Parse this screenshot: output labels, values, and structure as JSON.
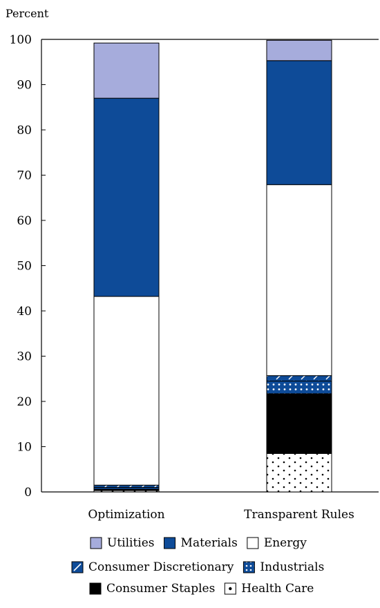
{
  "chart_data": {
    "type": "bar",
    "stacked": true,
    "ylabel": "Percent",
    "ylim": [
      0,
      100
    ],
    "yticks": [
      0,
      10,
      20,
      30,
      40,
      50,
      60,
      70,
      80,
      90,
      100
    ],
    "categories": [
      "Optimization",
      "Transparent Rules"
    ],
    "series": [
      {
        "name": "Health Care",
        "values": [
          0.3,
          8.5
        ],
        "color": "#ffffff",
        "pattern": "dots-black"
      },
      {
        "name": "Consumer Staples",
        "values": [
          0.3,
          13.2
        ],
        "color": "#000000",
        "pattern": "solid"
      },
      {
        "name": "Industrials",
        "values": [
          0.4,
          2.8
        ],
        "color": "#0e4b98",
        "pattern": "dots-white"
      },
      {
        "name": "Consumer Discretionary",
        "values": [
          0.5,
          1.2
        ],
        "color": "#0e4b98",
        "pattern": "hatch"
      },
      {
        "name": "Energy",
        "values": [
          41.7,
          42.2
        ],
        "color": "#ffffff",
        "pattern": "solid"
      },
      {
        "name": "Materials",
        "values": [
          43.8,
          27.4
        ],
        "color": "#0e4b98",
        "pattern": "solid"
      },
      {
        "name": "Utilities",
        "values": [
          12.2,
          4.5
        ],
        "color": "#a6acdc",
        "pattern": "solid"
      }
    ],
    "legend": {
      "placement": "bottom",
      "rows": [
        [
          "Utilities",
          "Materials",
          "Energy"
        ],
        [
          "Consumer Discretionary",
          "Industrials"
        ],
        [
          "Consumer Staples",
          "Health Care"
        ]
      ]
    }
  }
}
